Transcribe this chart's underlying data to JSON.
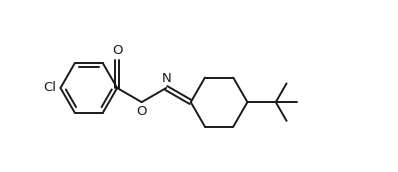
{
  "background": "#ffffff",
  "line_color": "#1a1a1a",
  "line_width": 1.4,
  "font_size": 9.5,
  "figsize": [
    3.98,
    1.72
  ],
  "dpi": 100,
  "xlim": [
    0,
    10
  ],
  "ylim": [
    0,
    4.3
  ]
}
